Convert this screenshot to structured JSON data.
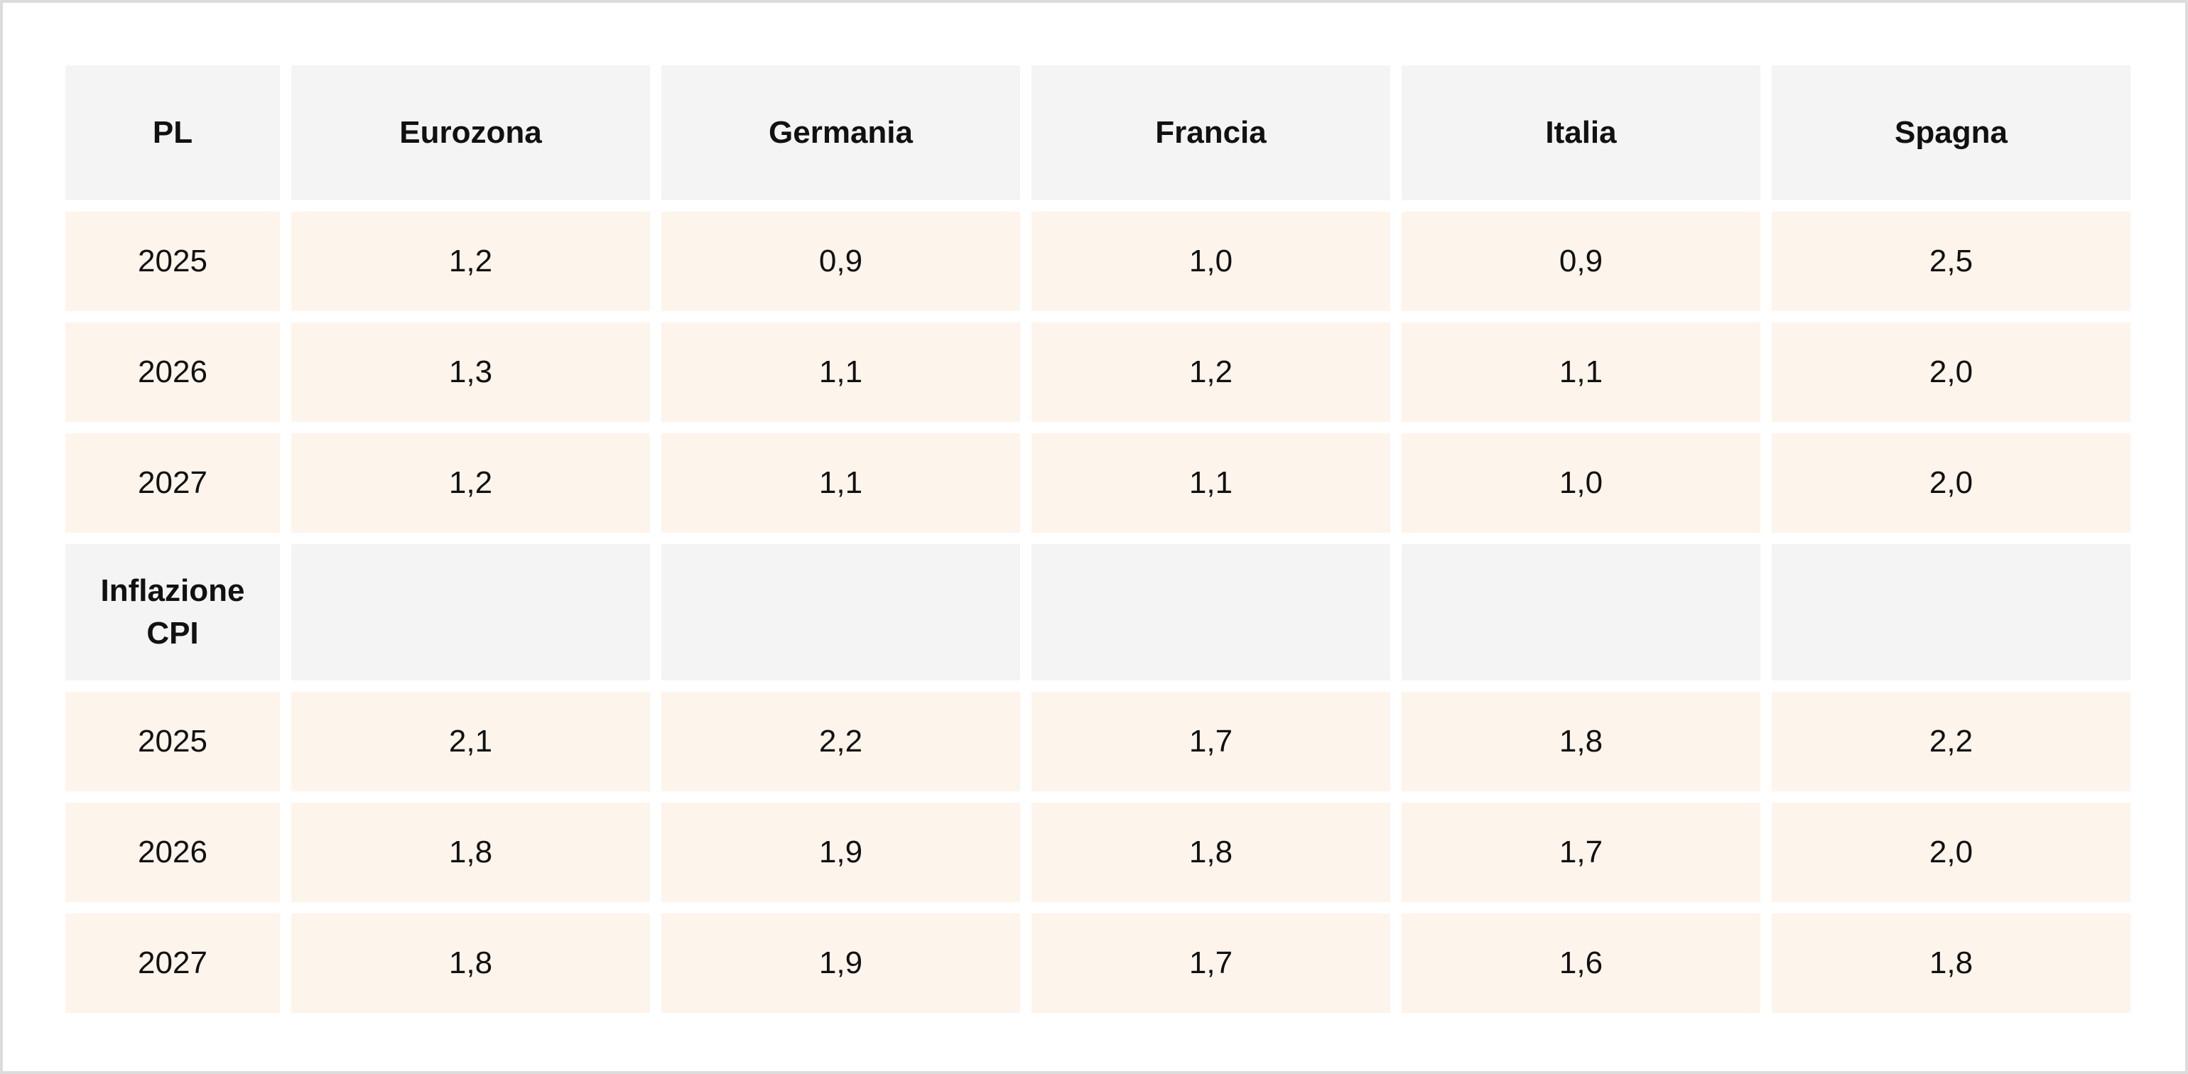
{
  "table": {
    "header": {
      "corner": "PL",
      "countries": [
        "Eurozona",
        "Germania",
        "Francia",
        "Italia",
        "Spagna"
      ]
    },
    "pl_rows": [
      {
        "year": "2025",
        "values": [
          "1,2",
          "0,9",
          "1,0",
          "0,9",
          "2,5"
        ]
      },
      {
        "year": "2026",
        "values": [
          "1,3",
          "1,1",
          "1,2",
          "1,1",
          "2,0"
        ]
      },
      {
        "year": "2027",
        "values": [
          "1,2",
          "1,1",
          "1,1",
          "1,0",
          "2,0"
        ]
      }
    ],
    "inflation_section": {
      "label_line1": "Inflazione",
      "label_line2": "CPI"
    },
    "inflation_rows": [
      {
        "year": "2025",
        "values": [
          "2,1",
          "2,2",
          "1,7",
          "1,8",
          "2,2"
        ]
      },
      {
        "year": "2026",
        "values": [
          "1,8",
          "1,9",
          "1,8",
          "1,7",
          "2,0"
        ]
      },
      {
        "year": "2027",
        "values": [
          "1,8",
          "1,9",
          "1,7",
          "1,6",
          "1,8"
        ]
      }
    ]
  },
  "colors": {
    "header_bg": "#f4f4f4",
    "data_bg": "#fdf4ec",
    "frame_border": "#dcdcdc"
  }
}
